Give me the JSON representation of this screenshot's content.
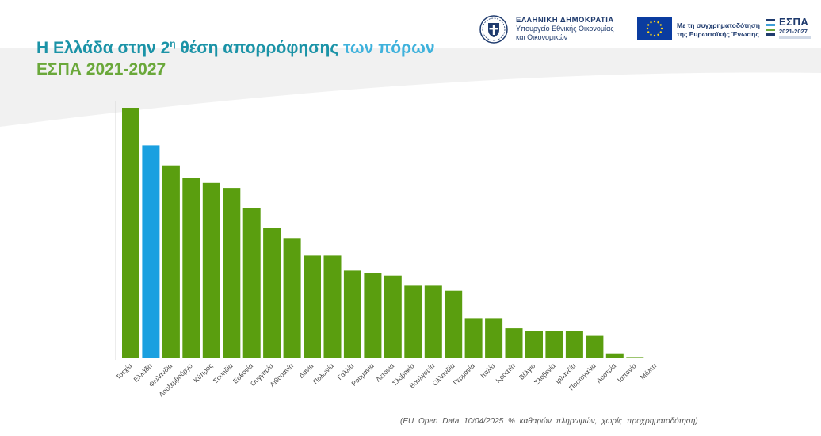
{
  "header": {
    "title_part1": "Η Ελλάδα στην 2",
    "title_sup": "η",
    "title_part2": " θέση απορρόφησης",
    "title_part3": " των πόρων",
    "subtitle": "ΕΣΠΑ 2021-2027"
  },
  "logos": {
    "gov_line1": "ΕΛΛΗΝΙΚΗ ΔΗΜΟΚΡΑΤΙΑ",
    "gov_line2": "Υπουργείο Εθνικής Οικονομίας",
    "gov_line3": "και Οικονομικών",
    "eu_line1": "Με τη συγχρηματοδότηση",
    "eu_line2": "της Ευρωπαϊκής Ένωσης",
    "espa_name": "ΕΣΠΑ",
    "espa_years": "2021-2027"
  },
  "footnote": "(EU Open Data 10/04/2025 % καθαρών πληρωμών, χωρίς προχρηματοδότηση)",
  "colors": {
    "bar": "#5a9e0f",
    "highlight": "#1aa0e0",
    "title_teal": "#1b93a7",
    "title_light": "#3fb2dc",
    "subtitle_green": "#6aa83a"
  },
  "chart_data": {
    "type": "bar",
    "title": "",
    "xlabel": "",
    "ylabel": "",
    "ylim": [
      0,
      100
    ],
    "grid": false,
    "highlight_category": "Ελλάδα",
    "categories": [
      "Τσεχία",
      "Ελλάδα",
      "Φινλανδία",
      "Λουξεμβούργο",
      "Κύπρος",
      "Σουηδία",
      "Εσθονία",
      "Ουγγαρία",
      "Λιθουανία",
      "Δανία",
      "Πολωνία",
      "Γαλλία",
      "Ρουμανία",
      "Λετονία",
      "Σλοβακία",
      "Βουλγαρία",
      "Ολλανδία",
      "Γερμανία",
      "Ιταλία",
      "Κροατία",
      "Βέλγιο",
      "Σλοβενία",
      "Ιρλανδία",
      "Πορτογαλία",
      "Αυστρία",
      "Ισπανία",
      "Μάλτα"
    ],
    "values": [
      100,
      85,
      77,
      72,
      70,
      68,
      60,
      52,
      48,
      41,
      41,
      35,
      34,
      33,
      29,
      29,
      27,
      16,
      16,
      12,
      11,
      11,
      11,
      9,
      2,
      0.5,
      0.1
    ]
  }
}
